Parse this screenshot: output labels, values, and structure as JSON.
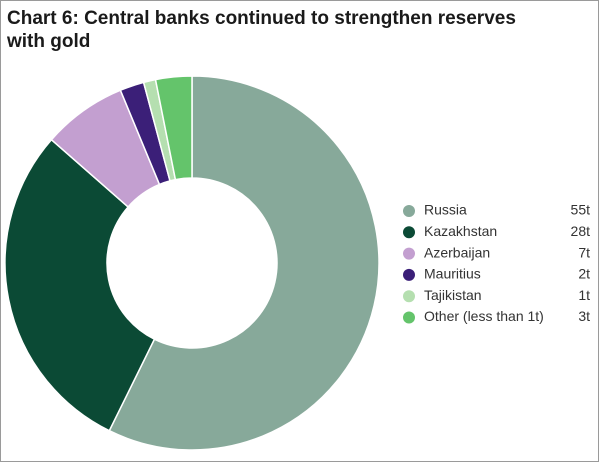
{
  "chart_data": {
    "type": "donut",
    "title": "Chart 6: Central banks continued to strengthen reserves with gold",
    "categories": [
      "Russia",
      "Kazakhstan",
      "Azerbaijan",
      "Mauritius",
      "Tajikistan",
      "Other (less than 1t)"
    ],
    "values": [
      55,
      28,
      7,
      2,
      1,
      3
    ],
    "value_labels": [
      "55t",
      "28t",
      "7t",
      "2t",
      "1t",
      "3t"
    ],
    "colors": [
      "#87a99a",
      "#0b4a35",
      "#c39fd0",
      "#3b1f78",
      "#b5dfb0",
      "#64c46b"
    ],
    "legend": "right"
  }
}
